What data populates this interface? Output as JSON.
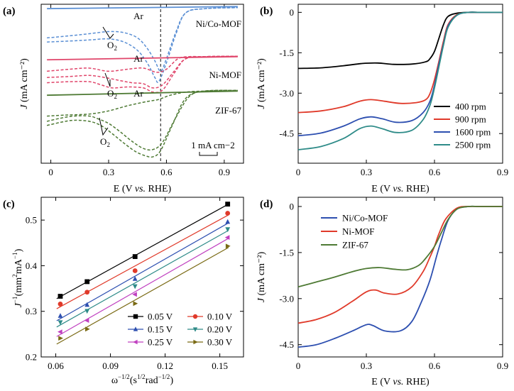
{
  "chart_data": [
    {
      "panel": "(a)",
      "type": "line",
      "xlabel": "E (V vs. RHE)",
      "ylabel": "J (mA cm⁻²)",
      "xlim": [
        -0.05,
        1.0
      ],
      "xticks": [
        "0",
        "0.3",
        "0.6",
        "0.9"
      ],
      "yticks": "none",
      "dashed_vline_x": 0.57,
      "scale_bar_label": "1 mA cm−2",
      "annotations": {
        "ar": "Ar",
        "o2": "O",
        "o2_sub": "2"
      },
      "materials": [
        {
          "name": "Ni/Co-MOF",
          "color": "#5a8fd4",
          "ar_line": {
            "x": [
              -0.02,
              0.97
            ],
            "offset": [
              7.0,
              7.1
            ]
          },
          "o2_cvs": [
            {
              "x": [
                -0.02,
                0.1,
                0.2,
                0.3,
                0.38,
                0.45,
                0.5,
                0.54,
                0.57,
                0.6,
                0.65,
                0.7,
                0.8,
                0.97
              ],
              "y": [
                5.6,
                5.7,
                5.8,
                5.9,
                5.85,
                5.6,
                5.1,
                4.5,
                4.0,
                4.6,
                5.9,
                6.8,
                7.0,
                7.05
              ]
            },
            {
              "x": [
                -0.02,
                0.1,
                0.2,
                0.3,
                0.38,
                0.45,
                0.5,
                0.54,
                0.56,
                0.6,
                0.65,
                0.7,
                0.8,
                0.97
              ],
              "y": [
                5.4,
                5.45,
                5.5,
                5.55,
                5.4,
                5.0,
                4.4,
                3.7,
                3.5,
                4.4,
                5.8,
                6.8,
                7.0,
                7.05
              ]
            }
          ]
        },
        {
          "name": "Ni-MOF",
          "color": "#e0456a",
          "ar_line": {
            "x": [
              -0.02,
              0.97
            ],
            "offset": [
              4.55,
              4.7
            ]
          },
          "o2_cvs": [
            {
              "x": [
                -0.02,
                0.1,
                0.2,
                0.3,
                0.4,
                0.48,
                0.55,
                0.6,
                0.66,
                0.72,
                0.8,
                0.97
              ],
              "y": [
                4.0,
                4.1,
                4.15,
                4.0,
                4.1,
                4.15,
                3.95,
                4.1,
                4.6,
                4.7,
                4.7,
                4.72
              ]
            },
            {
              "x": [
                -0.02,
                0.1,
                0.2,
                0.28,
                0.36,
                0.42,
                0.48,
                0.53,
                0.58,
                0.64,
                0.7,
                0.8,
                0.97
              ],
              "y": [
                3.7,
                3.75,
                3.8,
                3.7,
                3.55,
                3.45,
                3.4,
                3.2,
                3.35,
                4.0,
                4.6,
                4.7,
                4.72
              ]
            },
            {
              "x": [
                -0.02,
                0.1,
                0.2,
                0.26,
                0.32,
                0.4,
                0.48,
                0.53,
                0.58,
                0.64,
                0.7,
                0.8,
                0.97
              ],
              "y": [
                3.45,
                3.5,
                3.5,
                3.35,
                3.2,
                3.25,
                3.2,
                3.0,
                3.1,
                3.9,
                4.6,
                4.7,
                4.72
              ]
            }
          ]
        },
        {
          "name": "ZIF-67",
          "color": "#4e7a34",
          "ar_line": {
            "x": [
              -0.02,
              0.97
            ],
            "offset": [
              2.85,
              3.05
            ]
          },
          "o2_cvs": [
            {
              "x": [
                -0.02,
                0.08,
                0.2,
                0.3,
                0.4,
                0.5,
                0.56,
                0.62,
                0.7,
                0.8,
                0.97
              ],
              "y": [
                1.85,
                1.9,
                1.95,
                2.1,
                2.35,
                2.55,
                2.65,
                2.85,
                3.0,
                3.05,
                3.08
              ]
            },
            {
              "x": [
                -0.02,
                0.05,
                0.12,
                0.2,
                0.25,
                0.3,
                0.36,
                0.42,
                0.48,
                0.53,
                0.58,
                0.65,
                0.72,
                0.8,
                0.97
              ],
              "y": [
                1.6,
                1.75,
                1.85,
                1.85,
                1.7,
                1.5,
                1.1,
                0.65,
                0.3,
                0.25,
                0.6,
                1.8,
                2.8,
                3.05,
                3.08
              ]
            },
            {
              "x": [
                -0.02,
                0.05,
                0.12,
                0.2,
                0.26,
                0.32,
                0.38,
                0.44,
                0.49,
                0.53,
                0.57,
                0.63,
                0.7,
                0.8,
                0.97
              ],
              "y": [
                1.4,
                1.55,
                1.65,
                1.6,
                1.4,
                1.0,
                0.55,
                0.15,
                -0.05,
                -0.1,
                0.2,
                1.4,
                2.7,
                3.05,
                3.08
              ]
            }
          ]
        }
      ]
    },
    {
      "panel": "(b)",
      "type": "line",
      "xlabel": "E (V vs. RHE)",
      "ylabel": "J (mA cm⁻²)",
      "xlim": [
        0,
        0.9
      ],
      "ylim": [
        -5.6,
        0.3
      ],
      "xticks": [
        "0",
        "0.3",
        "0.6",
        "0.9"
      ],
      "yticks": [
        "0",
        "-1.5",
        "-3.0",
        "-4.5"
      ],
      "legend": "bottom-right",
      "series": [
        {
          "name": "400 rpm",
          "color": "#000000",
          "x": [
            0,
            0.1,
            0.2,
            0.28,
            0.35,
            0.42,
            0.5,
            0.56,
            0.58,
            0.6,
            0.62,
            0.64,
            0.66,
            0.7,
            0.75,
            0.8,
            0.9
          ],
          "y": [
            -2.08,
            -2.06,
            -1.98,
            -1.9,
            -1.88,
            -1.93,
            -1.92,
            -1.84,
            -1.72,
            -1.45,
            -0.95,
            -0.45,
            -0.15,
            -0.03,
            0,
            0,
            0
          ]
        },
        {
          "name": "900 rpm",
          "color": "#e03a2a",
          "x": [
            0,
            0.1,
            0.2,
            0.27,
            0.32,
            0.38,
            0.45,
            0.52,
            0.56,
            0.58,
            0.6,
            0.62,
            0.64,
            0.66,
            0.7,
            0.75,
            0.8,
            0.9
          ],
          "y": [
            -3.72,
            -3.66,
            -3.5,
            -3.3,
            -3.24,
            -3.3,
            -3.38,
            -3.35,
            -3.25,
            -3.02,
            -2.5,
            -1.8,
            -1.05,
            -0.45,
            -0.08,
            0,
            0,
            0
          ]
        },
        {
          "name": "1600 rpm",
          "color": "#2d4fb0",
          "x": [
            0,
            0.1,
            0.2,
            0.27,
            0.32,
            0.37,
            0.43,
            0.5,
            0.55,
            0.58,
            0.6,
            0.62,
            0.64,
            0.66,
            0.7,
            0.75,
            0.8,
            0.9
          ],
          "y": [
            -4.58,
            -4.48,
            -4.22,
            -3.96,
            -3.88,
            -3.95,
            -4.08,
            -4.02,
            -3.72,
            -3.3,
            -2.7,
            -1.9,
            -1.15,
            -0.5,
            -0.1,
            0,
            0,
            0
          ]
        },
        {
          "name": "2500 rpm",
          "color": "#2e8b88",
          "x": [
            0,
            0.1,
            0.2,
            0.27,
            0.32,
            0.37,
            0.43,
            0.5,
            0.55,
            0.58,
            0.6,
            0.62,
            0.64,
            0.66,
            0.7,
            0.75,
            0.8,
            0.9
          ],
          "y": [
            -5.1,
            -4.98,
            -4.68,
            -4.32,
            -4.22,
            -4.32,
            -4.46,
            -4.38,
            -3.98,
            -3.45,
            -2.8,
            -2.0,
            -1.2,
            -0.55,
            -0.1,
            0,
            0,
            0
          ]
        }
      ]
    },
    {
      "panel": "(c)",
      "type": "scatter",
      "xlabel": "ω⁻¹ᐟ² (s¹ᐟ² rad⁻¹ᐟ²)",
      "ylabel": "J⁻¹ (mm² mA⁻¹)",
      "xlim": [
        0.052,
        0.163
      ],
      "ylim": [
        0.2,
        0.55
      ],
      "xticks": [
        "0.06",
        "0.09",
        "0.12",
        "0.15"
      ],
      "yticks": [
        "0.2",
        "0.3",
        "0.4",
        "0.5"
      ],
      "legend": "bottom-right",
      "x": [
        0.0625,
        0.0772,
        0.1035,
        0.1543
      ],
      "series": [
        {
          "name": "0.05 V",
          "color": "#000000",
          "marker": "square",
          "values": [
            0.333,
            0.365,
            0.42,
            0.535
          ]
        },
        {
          "name": "0.10 V",
          "color": "#e03a2a",
          "marker": "circle",
          "values": [
            0.316,
            0.342,
            0.389,
            0.515
          ]
        },
        {
          "name": "0.15 V",
          "color": "#2d4fb0",
          "marker": "triangle-up",
          "values": [
            0.29,
            0.314,
            0.371,
            0.496
          ]
        },
        {
          "name": "0.20 V",
          "color": "#2e8b88",
          "marker": "triangle-down",
          "values": [
            0.276,
            0.301,
            0.355,
            0.48
          ]
        },
        {
          "name": "0.25 V",
          "color": "#c040c0",
          "marker": "triangle-left",
          "values": [
            0.255,
            0.28,
            0.337,
            0.462
          ]
        },
        {
          "name": "0.30 V",
          "color": "#7a6a14",
          "marker": "triangle-right",
          "values": [
            0.241,
            0.261,
            0.317,
            0.443
          ]
        }
      ]
    },
    {
      "panel": "(d)",
      "type": "line",
      "xlabel": "E (V vs. RHE)",
      "ylabel": "J (mA cm⁻²)",
      "xlim": [
        0,
        0.9
      ],
      "ylim": [
        -4.9,
        0.3
      ],
      "xticks": [
        "0",
        "0.3",
        "0.6",
        "0.9"
      ],
      "yticks": [
        "0",
        "-1.5",
        "-3.0",
        "-4.5"
      ],
      "legend": "top-left",
      "series": [
        {
          "name": "Ni/Co-MOF",
          "color": "#2d4fb0",
          "x": [
            0,
            0.08,
            0.16,
            0.24,
            0.3,
            0.33,
            0.38,
            0.45,
            0.5,
            0.54,
            0.58,
            0.61,
            0.63,
            0.66,
            0.7,
            0.75,
            0.8,
            0.9
          ],
          "y": [
            -4.58,
            -4.5,
            -4.3,
            -4.05,
            -3.85,
            -3.88,
            -4.05,
            -4.05,
            -3.75,
            -3.15,
            -2.4,
            -1.6,
            -1.1,
            -0.45,
            -0.08,
            0,
            0,
            0
          ]
        },
        {
          "name": "Ni-MOF",
          "color": "#e03a2a",
          "x": [
            0,
            0.08,
            0.16,
            0.24,
            0.3,
            0.34,
            0.38,
            0.44,
            0.5,
            0.55,
            0.58,
            0.6,
            0.62,
            0.65,
            0.7,
            0.75,
            0.8,
            0.9
          ],
          "y": [
            -3.8,
            -3.68,
            -3.45,
            -3.08,
            -2.78,
            -2.72,
            -2.82,
            -2.85,
            -2.62,
            -2.12,
            -1.65,
            -1.3,
            -0.88,
            -0.4,
            -0.05,
            0,
            0,
            0
          ]
        },
        {
          "name": "ZIF-67",
          "color": "#4e7a34",
          "x": [
            0,
            0.08,
            0.16,
            0.24,
            0.3,
            0.36,
            0.42,
            0.48,
            0.53,
            0.56,
            0.6,
            0.63,
            0.66,
            0.7,
            0.75,
            0.8,
            0.9
          ],
          "y": [
            -2.62,
            -2.46,
            -2.3,
            -2.12,
            -2.02,
            -1.99,
            -2.04,
            -2.06,
            -1.92,
            -1.7,
            -1.3,
            -0.86,
            -0.42,
            -0.08,
            0,
            0,
            0
          ]
        }
      ]
    }
  ]
}
